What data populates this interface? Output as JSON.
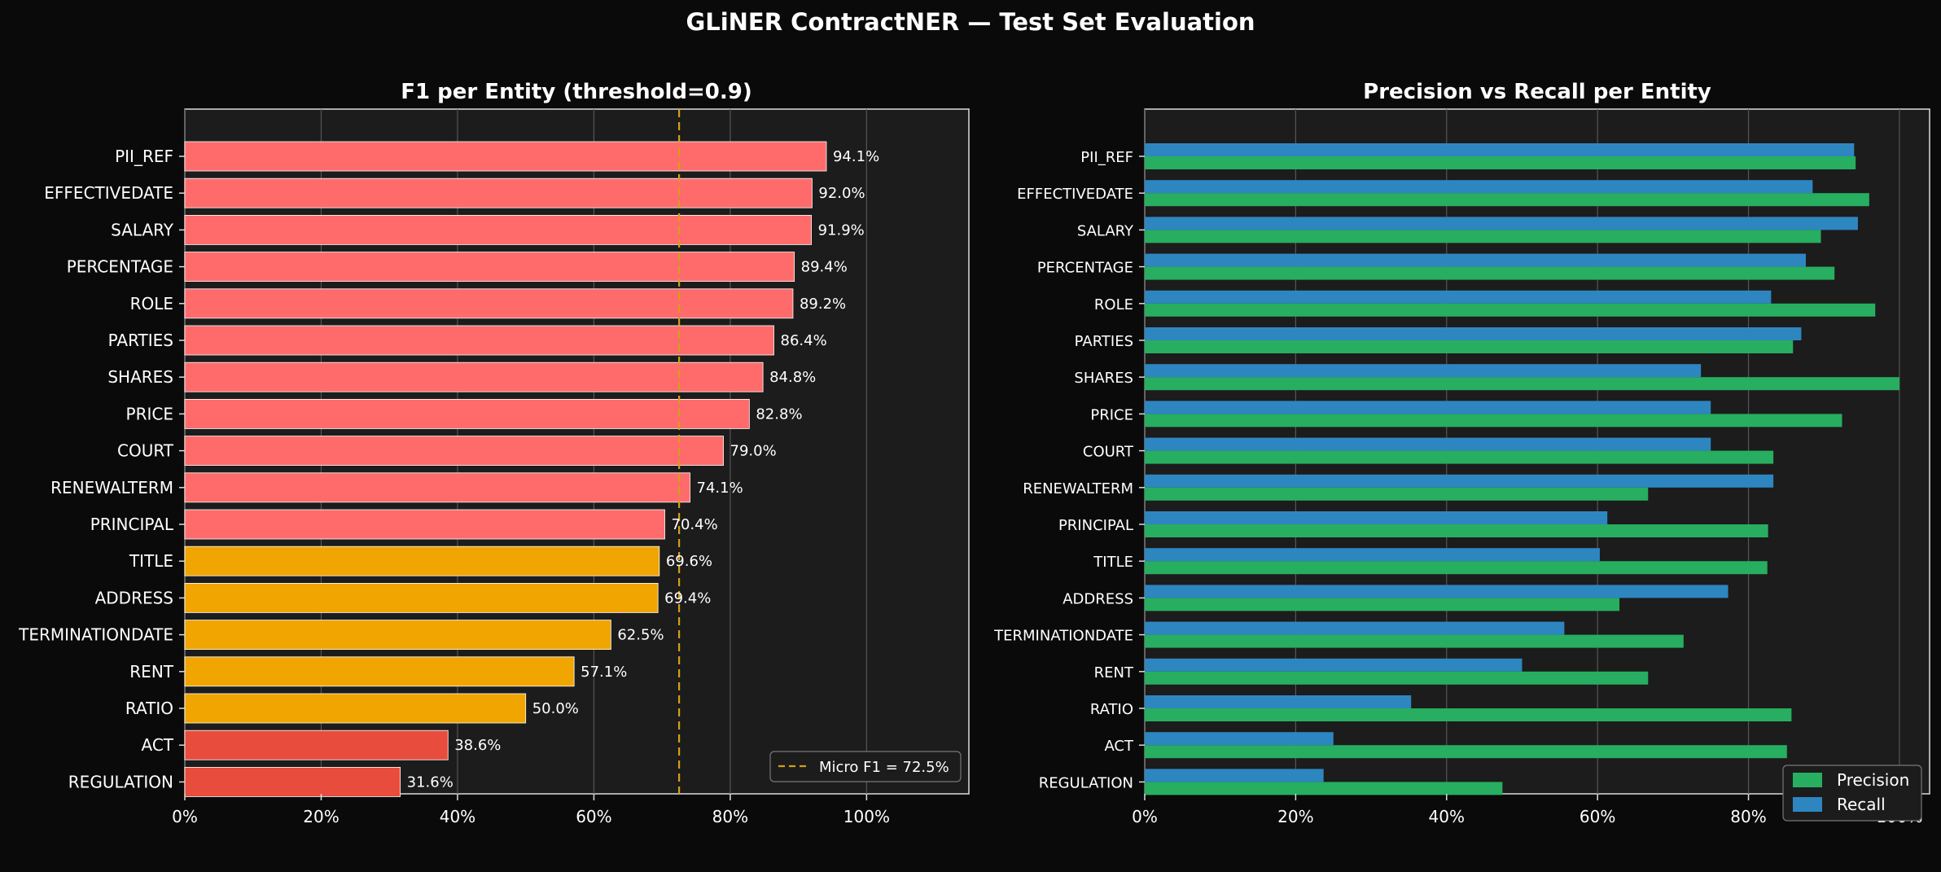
{
  "figure": {
    "title": "GLiNER ContractNER — Test Set Evaluation"
  },
  "colors": {
    "background": "#0a0a0a",
    "panel": "#1c1c1c",
    "high": "#ff6b6b",
    "mid": "#f0a500",
    "low": "#e74c3c",
    "precision": "#27ae60",
    "recall": "#2e86c1",
    "micro_line": "#d4a017",
    "grid": "#555555",
    "text": "#ffffff"
  },
  "chart_data": [
    {
      "type": "bar",
      "orientation": "horizontal",
      "title": "F1 per Entity (threshold=0.9)",
      "xlabel": "",
      "ylabel": "",
      "xlim": [
        0,
        115
      ],
      "x_ticks": [
        "0%",
        "20%",
        "40%",
        "60%",
        "80%",
        "100%"
      ],
      "grid": "vertical",
      "categories": [
        "PII_REF",
        "EFFECTIVEDATE",
        "SALARY",
        "PERCENTAGE",
        "ROLE",
        "PARTIES",
        "SHARES",
        "PRICE",
        "COURT",
        "RENEWALTERM",
        "PRINCIPAL",
        "TITLE",
        "ADDRESS",
        "TERMINATIONDATE",
        "RENT",
        "RATIO",
        "ACT",
        "REGULATION"
      ],
      "values": [
        94.1,
        92.0,
        91.9,
        89.4,
        89.2,
        86.4,
        84.8,
        82.8,
        79.0,
        74.1,
        70.4,
        69.6,
        69.4,
        62.5,
        57.1,
        50.0,
        38.6,
        31.6
      ],
      "value_labels": [
        "94.1%",
        "92.0%",
        "91.9%",
        "89.4%",
        "89.2%",
        "86.4%",
        "84.8%",
        "82.8%",
        "79.0%",
        "74.1%",
        "70.4%",
        "69.6%",
        "69.4%",
        "62.5%",
        "57.1%",
        "50.0%",
        "38.6%",
        "31.6%"
      ],
      "micro_f1": 72.5,
      "legend": {
        "label": "Micro F1 = 72.5%",
        "placement": "lower-right"
      }
    },
    {
      "type": "bar",
      "orientation": "horizontal",
      "title": "Precision vs Recall per Entity",
      "xlabel": "",
      "ylabel": "",
      "xlim": [
        0,
        104
      ],
      "x_ticks": [
        "0%",
        "20%",
        "40%",
        "60%",
        "80%",
        "100%"
      ],
      "grid": "vertical",
      "categories": [
        "PII_REF",
        "EFFECTIVEDATE",
        "SALARY",
        "PERCENTAGE",
        "ROLE",
        "PARTIES",
        "SHARES",
        "PRICE",
        "COURT",
        "RENEWALTERM",
        "PRINCIPAL",
        "TITLE",
        "ADDRESS",
        "TERMINATIONDATE",
        "RENT",
        "RATIO",
        "ACT",
        "REGULATION"
      ],
      "series": [
        {
          "name": "Precision",
          "values": [
            94.2,
            96.0,
            89.6,
            91.4,
            96.8,
            85.9,
            100.0,
            92.4,
            83.3,
            66.7,
            82.6,
            82.5,
            62.9,
            71.4,
            66.7,
            85.7,
            85.1,
            47.4
          ]
        },
        {
          "name": "Recall",
          "values": [
            94.0,
            88.5,
            94.5,
            87.6,
            83.0,
            87.0,
            73.7,
            75.0,
            75.0,
            83.3,
            61.3,
            60.3,
            77.3,
            55.6,
            50.0,
            35.3,
            25.0,
            23.7
          ]
        }
      ],
      "legend": {
        "placement": "lower-right"
      }
    }
  ]
}
